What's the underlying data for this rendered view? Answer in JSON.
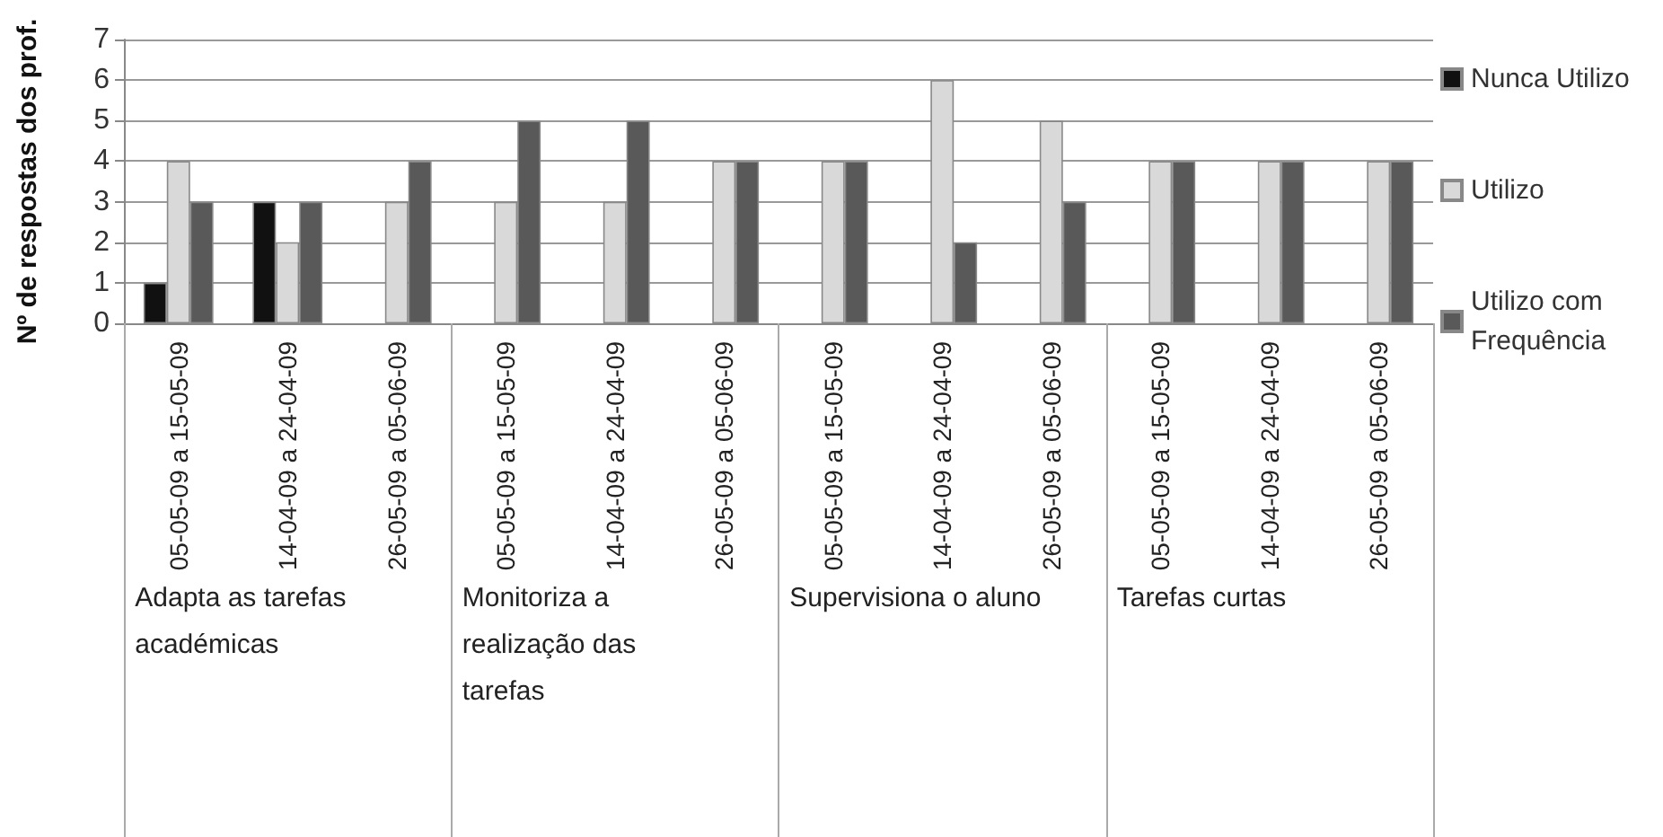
{
  "chart_data": {
    "type": "bar",
    "ylabel": "Nº de respostas dos prof.",
    "categories": [
      "05-05-09 a 15-05-09",
      "14-04-09 a 24-04-09",
      "26-05-09 a 05-06-09",
      "05-05-09 a 15-05-09",
      "14-04-09 a 24-04-09",
      "26-05-09 a 05-06-09",
      "05-05-09 a 15-05-09",
      "14-04-09 a 24-04-09",
      "26-05-09 a 05-06-09",
      "05-05-09 a 15-05-09",
      "14-04-09 a 24-04-09",
      "26-05-09 a 05-06-09"
    ],
    "series": [
      {
        "name": "Nunca Utilizo",
        "color": "#111111",
        "values": [
          1,
          3,
          null,
          null,
          null,
          null,
          null,
          null,
          null,
          null,
          null,
          null
        ]
      },
      {
        "name": "Utilizo",
        "color": "#d9d9d9",
        "values": [
          4,
          2,
          3,
          3,
          3,
          4,
          4,
          6,
          5,
          4,
          4,
          4
        ]
      },
      {
        "name": "Utilizo com Frequência",
        "color": "#595959",
        "values": [
          3,
          3,
          4,
          5,
          5,
          4,
          4,
          2,
          3,
          4,
          4,
          4
        ]
      }
    ],
    "annotations": [
      "Adapta as tarefas académicas",
      "Monitoriza a realização das tarefas",
      "Supervisiona o aluno",
      "Tarefas curtas"
    ],
    "ylim": [
      0,
      7
    ],
    "yticks": [
      0,
      1,
      2,
      3,
      4,
      5,
      6,
      7
    ],
    "grid": "y",
    "legend": "right"
  }
}
